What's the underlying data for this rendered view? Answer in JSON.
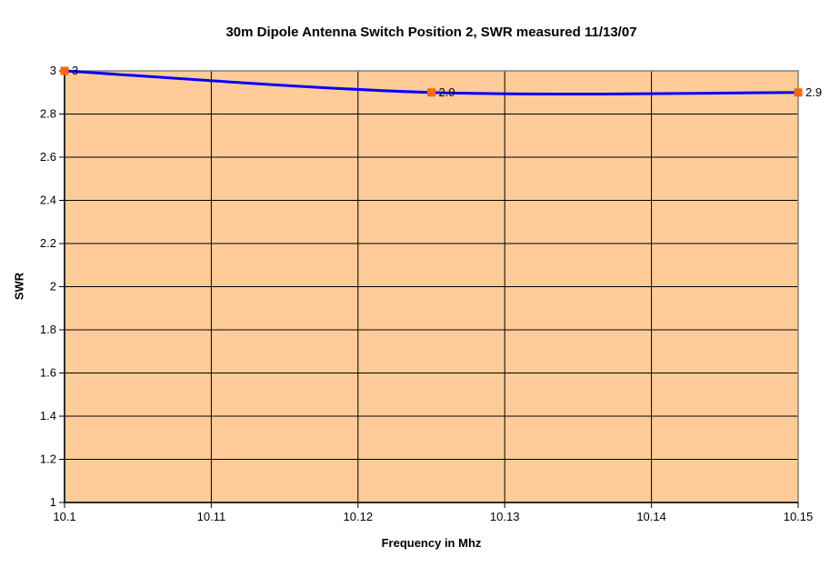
{
  "chart_data": {
    "type": "line",
    "title": "30m Dipole Antenna Switch Position 2, SWR measured 11/13/07",
    "xlabel": "Frequency in Mhz",
    "ylabel": "SWR",
    "x": [
      10.1,
      10.125,
      10.15
    ],
    "values": [
      3,
      2.9,
      2.9
    ],
    "point_labels": [
      "3",
      "2.9",
      "2.9"
    ],
    "xlim": [
      10.1,
      10.15
    ],
    "ylim": [
      1,
      3
    ],
    "x_ticks": [
      10.1,
      10.11,
      10.12,
      10.13,
      10.14,
      10.15
    ],
    "x_tick_labels": [
      "10.1",
      "10.11",
      "10.12",
      "10.13",
      "10.14",
      "10.15"
    ],
    "y_ticks": [
      1,
      1.2,
      1.4,
      1.6,
      1.8,
      2,
      2.2,
      2.4,
      2.6,
      2.8,
      3
    ],
    "y_tick_labels": [
      "1",
      "1.2",
      "1.4",
      "1.6",
      "1.8",
      "2",
      "2.2",
      "2.4",
      "2.6",
      "2.8",
      "3"
    ],
    "grid": true,
    "legend": "none",
    "line_smoothed": true,
    "marker_shape": "square",
    "colors": {
      "background": "#FFFFFF",
      "plot_bg": "#FFCC99",
      "plot_border": "#808080",
      "gridline": "#000000",
      "axis": "#000000",
      "line": "#0000FF",
      "marker": "#FF6600",
      "text": "#000000"
    }
  }
}
